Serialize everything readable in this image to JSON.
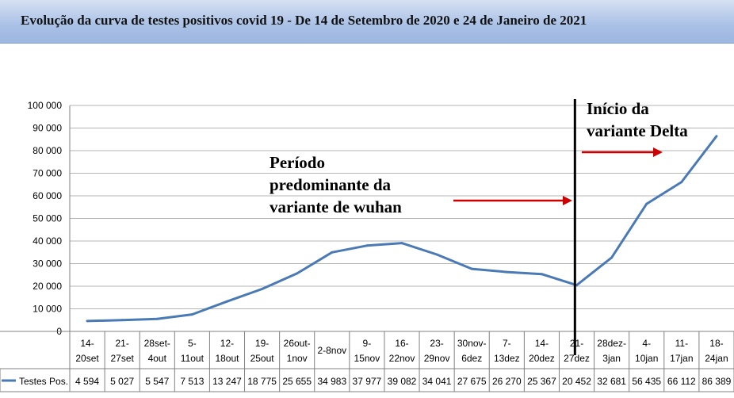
{
  "header": {
    "title": "Evolução da curva de testes positivos covid 19 - De 14 de Setembro de 2020 e 24 de Janeiro de 2021"
  },
  "chart_data": {
    "type": "line",
    "title": "",
    "xlabel": "",
    "ylabel": "",
    "ylim": [
      0,
      100000
    ],
    "yticks": [
      "0",
      "10 000",
      "20 000",
      "30 000",
      "40 000",
      "50 000",
      "60 000",
      "70 000",
      "80 000",
      "90 000",
      "100 000"
    ],
    "grid": true,
    "categories": [
      [
        "14-",
        "20set"
      ],
      [
        "21-",
        "27set"
      ],
      [
        "28set-",
        "4out"
      ],
      [
        "5-",
        "11out"
      ],
      [
        "12-",
        "18out"
      ],
      [
        "19-",
        "25out"
      ],
      [
        "26out-",
        "1nov"
      ],
      [
        "2-8nov"
      ],
      [
        "9-",
        "15nov"
      ],
      [
        "16-",
        "22nov"
      ],
      [
        "23-",
        "29nov"
      ],
      [
        "30nov-",
        "6dez"
      ],
      [
        "7-",
        "13dez"
      ],
      [
        "14-",
        "20dez"
      ],
      [
        "21-",
        "27dez"
      ],
      [
        "28dez-",
        "3jan"
      ],
      [
        "4-",
        "10jan"
      ],
      [
        "11-",
        "17jan"
      ],
      [
        "18-",
        "24jan"
      ]
    ],
    "series": [
      {
        "name": "Testes Pos.",
        "color": "#4a7ab5",
        "values": [
          4594,
          5027,
          5547,
          7513,
          13247,
          18775,
          25655,
          34983,
          37977,
          39082,
          34041,
          27675,
          26270,
          25367,
          20452,
          32681,
          56435,
          66112,
          86389
        ],
        "labels": [
          "4 594",
          "5 027",
          "5 547",
          "7 513",
          "13 247",
          "18 775",
          "25 655",
          "34 983",
          "37 977",
          "39 082",
          "34 041",
          "27 675",
          "26 270",
          "25 367",
          "20 452",
          "32 681",
          "56 435",
          "66 112",
          "86 389"
        ]
      }
    ],
    "legend": "bottom-left, inside data table",
    "annotations": [
      {
        "lines": [
          "Período",
          "predominante da",
          "variante de wuhan"
        ],
        "arrow_color": "#cc0000"
      },
      {
        "lines": [
          "Início da",
          "variante Delta"
        ],
        "arrow_color": "#cc0000"
      }
    ],
    "marker_line": {
      "category_index": 14,
      "color": "#000000"
    }
  }
}
